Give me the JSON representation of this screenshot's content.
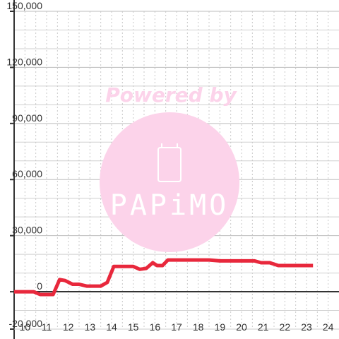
{
  "chart_data": {
    "type": "line",
    "title": "",
    "xlabel": "",
    "ylabel": "",
    "xlim": [
      9.5,
      24.5
    ],
    "ylim": [
      -20000,
      150000
    ],
    "x_ticks": [
      10,
      11,
      12,
      13,
      14,
      15,
      16,
      17,
      18,
      19,
      20,
      21,
      22,
      23,
      24
    ],
    "y_ticks": [
      -20000,
      0,
      30000,
      60000,
      90000,
      120000,
      150000
    ],
    "y_tick_labels": [
      "-20,000",
      "0",
      "30,000",
      "60,000",
      "90,000",
      "120,000",
      "150,000"
    ],
    "grid": true,
    "series": [
      {
        "color": "#e8283c",
        "x": [
          9.5,
          10.0,
          10.4,
          10.7,
          11.0,
          11.3,
          11.6,
          11.85,
          12.2,
          12.5,
          12.85,
          13.2,
          13.5,
          13.8,
          14.1,
          14.4,
          14.65,
          15.0,
          15.3,
          15.6,
          15.9,
          16.1,
          16.35,
          16.6,
          16.75,
          17.0,
          17.3,
          18.0,
          18.5,
          19.0,
          20.0,
          20.6,
          20.9,
          21.3,
          21.7,
          22.0,
          22.5,
          23.0,
          23.3
        ],
        "y": [
          0,
          0,
          0,
          -1500,
          -1500,
          -1500,
          6500,
          6000,
          4000,
          4000,
          3000,
          3000,
          3000,
          5000,
          13500,
          13500,
          13500,
          13500,
          12000,
          12500,
          15500,
          14000,
          14000,
          17000,
          17000,
          17000,
          17000,
          17000,
          17000,
          16500,
          16500,
          16500,
          15500,
          15500,
          14000,
          14000,
          14000,
          14000,
          14000
        ]
      }
    ],
    "watermark": {
      "tagline": "Powered by",
      "brand": "PAPiMO"
    }
  }
}
